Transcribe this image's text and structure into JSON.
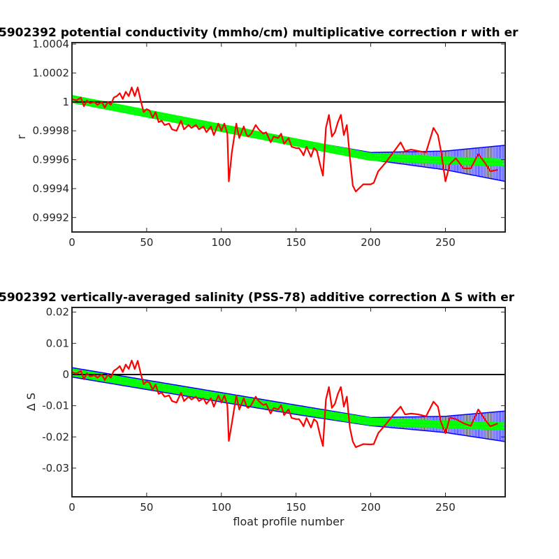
{
  "chart_data": [
    {
      "type": "line",
      "title": "5902392 potential conductivity (mmho/cm) multiplicative correction r with er",
      "xlabel": "",
      "ylabel": "r",
      "xlim": [
        0,
        290
      ],
      "ylim": [
        0.9991,
        1.00041
      ],
      "xticks": [
        "0",
        "50",
        "100",
        "150",
        "200",
        "250"
      ],
      "yticks": [
        "0.9992",
        "0.9994",
        "0.9996",
        "0.9998",
        "1",
        "1.0002",
        "1.0004"
      ],
      "ytick_values": [
        0.9992,
        0.9994,
        0.9996,
        0.9998,
        1.0,
        1.0002,
        1.0004
      ],
      "reference_line": 1.0,
      "fit": {
        "name": "",
        "x": [
          0,
          50,
          100,
          150,
          200,
          250,
          290
        ],
        "values": [
          1.00002,
          0.99992,
          0.99982,
          0.99972,
          0.99962,
          0.999595,
          0.99958
        ]
      },
      "error_band": {
        "x": [
          0,
          50,
          100,
          150,
          200,
          250,
          290
        ],
        "upper": [
          1.00004,
          0.99994,
          0.99984,
          0.99974,
          0.99965,
          0.99966,
          0.9997
        ],
        "lower": [
          1.0,
          0.9999,
          0.9998,
          0.9997,
          0.9996,
          0.99953,
          0.99945
        ]
      },
      "series": [
        {
          "name": "",
          "x": [
            0,
            3,
            6,
            8,
            10,
            12,
            15,
            17,
            20,
            22,
            24,
            26,
            28,
            30,
            32,
            34,
            36,
            38,
            40,
            42,
            44,
            46,
            48,
            50,
            52,
            54,
            56,
            58,
            60,
            62,
            65,
            67,
            70,
            73,
            75,
            78,
            80,
            83,
            85,
            88,
            90,
            93,
            95,
            98,
            100,
            102,
            104,
            105,
            107,
            110,
            112,
            115,
            117,
            118,
            120,
            123,
            125,
            128,
            130,
            133,
            135,
            138,
            140,
            142,
            145,
            147,
            150,
            152,
            154,
            155,
            157,
            160,
            162,
            164,
            166,
            168,
            170,
            172,
            174,
            176,
            178,
            180,
            182,
            184,
            186,
            188,
            190,
            195,
            200,
            202,
            205,
            210,
            215,
            220,
            223,
            227,
            232,
            237,
            242,
            245,
            247,
            250,
            253,
            257,
            262,
            267,
            272,
            277,
            280,
            285
          ],
          "values": [
            1.00002,
            1.00001,
            1.00003,
            0.99997,
            1.00001,
            0.99999,
            1.0,
            0.99998,
            1.0,
            0.99996,
            1.0,
            0.99998,
            1.00003,
            1.00004,
            1.00006,
            1.00002,
            1.00007,
            1.00004,
            1.0001,
            1.00004,
            1.0001,
            1.00001,
            0.99993,
            0.99995,
            0.99994,
            0.99989,
            0.99993,
            0.99986,
            0.99987,
            0.99984,
            0.99985,
            0.99981,
            0.9998,
            0.99987,
            0.99981,
            0.99984,
            0.99982,
            0.99984,
            0.99981,
            0.99983,
            0.99979,
            0.99983,
            0.99977,
            0.99985,
            0.9998,
            0.99985,
            0.99978,
            0.99945,
            0.99965,
            0.99985,
            0.99975,
            0.99983,
            0.99977,
            0.99976,
            0.99978,
            0.99984,
            0.99981,
            0.99978,
            0.99979,
            0.99972,
            0.99976,
            0.99975,
            0.99978,
            0.99971,
            0.99975,
            0.99969,
            0.99968,
            0.99968,
            0.99965,
            0.99963,
            0.99969,
            0.99962,
            0.99968,
            0.99966,
            0.99957,
            0.99949,
            0.99982,
            0.99991,
            0.99976,
            0.99979,
            0.99986,
            0.99991,
            0.99977,
            0.99984,
            0.99962,
            0.99942,
            0.99938,
            0.99943,
            0.99943,
            0.99944,
            0.99952,
            0.99958,
            0.99965,
            0.99972,
            0.99966,
            0.99967,
            0.99966,
            0.99965,
            0.99982,
            0.99977,
            0.99966,
            0.99945,
            0.99957,
            0.99961,
            0.99954,
            0.99954,
            0.99964,
            0.99957,
            0.99952,
            0.99953
          ]
        }
      ],
      "colors": {
        "data": "#ff0000",
        "fit": "#00ff00",
        "error": "#0000ff",
        "reference": "#000000",
        "axes": "#262626"
      },
      "grid": false
    },
    {
      "type": "line",
      "title": "5902392 vertically-averaged salinity (PSS-78) additive correction Δ S with er",
      "xlabel": "float profile number",
      "ylabel": "Δ S",
      "xlim": [
        0,
        290
      ],
      "ylim": [
        -0.0392,
        0.0215
      ],
      "xticks": [
        "0",
        "50",
        "100",
        "150",
        "200",
        "250"
      ],
      "yticks": [
        "-0.03",
        "-0.02",
        "-0.01",
        "0",
        "0.01",
        "0.02"
      ],
      "ytick_values": [
        -0.03,
        -0.02,
        -0.01,
        0.0,
        0.01,
        0.02
      ],
      "reference_line": 0.0,
      "fit": {
        "name": "",
        "x": [
          0,
          50,
          100,
          150,
          200,
          250,
          290
        ],
        "values": [
          0.0007,
          -0.0033,
          -0.0073,
          -0.0113,
          -0.0151,
          -0.016,
          -0.0166
        ]
      },
      "error_band": {
        "x": [
          0,
          50,
          100,
          150,
          200,
          250,
          290
        ],
        "upper": [
          0.0022,
          -0.0018,
          -0.0058,
          -0.0098,
          -0.0138,
          -0.0134,
          -0.0117
        ],
        "lower": [
          -0.0008,
          -0.0048,
          -0.0088,
          -0.0128,
          -0.0164,
          -0.0186,
          -0.0215
        ]
      },
      "series": [
        {
          "name": "",
          "x": [
            0,
            3,
            6,
            8,
            10,
            12,
            15,
            17,
            20,
            22,
            24,
            26,
            28,
            30,
            32,
            34,
            36,
            38,
            40,
            42,
            44,
            46,
            48,
            50,
            52,
            54,
            56,
            58,
            60,
            62,
            65,
            67,
            70,
            73,
            75,
            78,
            80,
            83,
            85,
            88,
            90,
            93,
            95,
            98,
            100,
            102,
            104,
            105,
            107,
            110,
            112,
            115,
            117,
            118,
            120,
            123,
            125,
            128,
            130,
            133,
            135,
            138,
            140,
            142,
            145,
            147,
            150,
            152,
            154,
            155,
            157,
            160,
            162,
            164,
            166,
            168,
            170,
            172,
            174,
            176,
            178,
            180,
            182,
            184,
            186,
            188,
            190,
            195,
            200,
            202,
            205,
            210,
            215,
            220,
            223,
            227,
            232,
            237,
            242,
            245,
            247,
            250,
            253,
            257,
            262,
            267,
            272,
            277,
            280,
            285
          ],
          "values": [
            0.0008,
            0.0003,
            0.0012,
            -0.0015,
            0.0004,
            -0.0006,
            -0.0002,
            -0.001,
            0.0,
            -0.0018,
            0.0,
            -0.001,
            0.0012,
            0.0018,
            0.0027,
            0.0008,
            0.0032,
            0.0018,
            0.0045,
            0.0018,
            0.0044,
            0.0004,
            -0.0031,
            -0.0022,
            -0.0027,
            -0.0049,
            -0.0032,
            -0.0062,
            -0.0058,
            -0.0071,
            -0.0067,
            -0.0085,
            -0.009,
            -0.0058,
            -0.0085,
            -0.0071,
            -0.008,
            -0.0071,
            -0.0085,
            -0.0076,
            -0.0094,
            -0.0076,
            -0.0103,
            -0.0067,
            -0.009,
            -0.0067,
            -0.0098,
            -0.0213,
            -0.0157,
            -0.0067,
            -0.0112,
            -0.0076,
            -0.0103,
            -0.0107,
            -0.0098,
            -0.0071,
            -0.0085,
            -0.0098,
            -0.0094,
            -0.0125,
            -0.0107,
            -0.0112,
            -0.0098,
            -0.013,
            -0.0112,
            -0.0139,
            -0.0143,
            -0.0143,
            -0.0157,
            -0.0166,
            -0.0139,
            -0.017,
            -0.0143,
            -0.0152,
            -0.0193,
            -0.0229,
            -0.008,
            -0.004,
            -0.0107,
            -0.0094,
            -0.0062,
            -0.004,
            -0.0103,
            -0.0071,
            -0.017,
            -0.0215,
            -0.0233,
            -0.0223,
            -0.0224,
            -0.0223,
            -0.0188,
            -0.016,
            -0.013,
            -0.0103,
            -0.0128,
            -0.0125,
            -0.0128,
            -0.0134,
            -0.0087,
            -0.0103,
            -0.0152,
            -0.0188,
            -0.0138,
            -0.0143,
            -0.0156,
            -0.0165,
            -0.0112,
            -0.0148,
            -0.0166,
            -0.0157
          ]
        }
      ],
      "colors": {
        "data": "#ff0000",
        "fit": "#00ff00",
        "error": "#0000ff",
        "reference": "#000000",
        "axes": "#262626"
      },
      "grid": false
    }
  ]
}
